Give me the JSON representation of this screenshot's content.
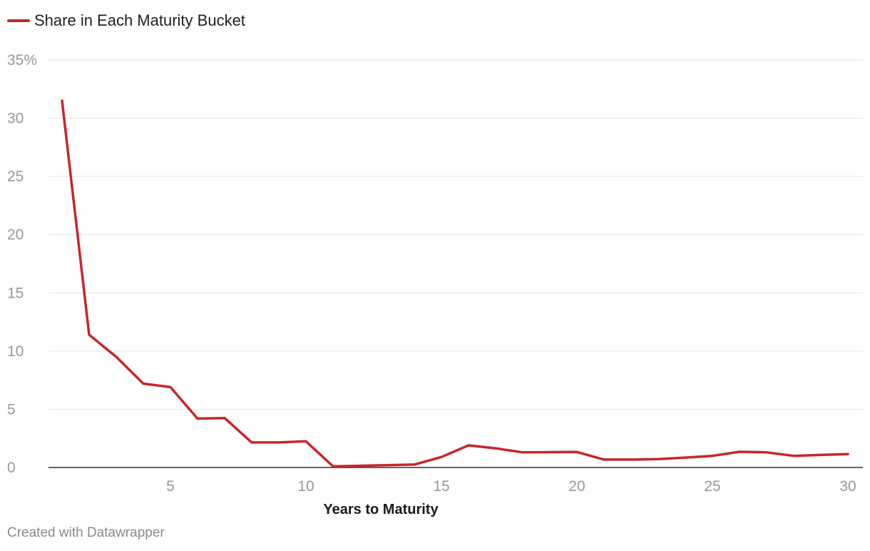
{
  "legend": {
    "label": "Share in Each Maturity Bucket"
  },
  "footer": {
    "text": "Created with Datawrapper"
  },
  "colors": {
    "line": "#c7262b",
    "grid": "#e5e5e5",
    "tick": "#999999",
    "axis": "#333333",
    "xlabel": "#1a1a1a"
  },
  "chart_data": {
    "type": "line",
    "title": "",
    "xlabel": "Years to Maturity",
    "ylabel": "",
    "xlim": [
      1,
      30
    ],
    "ylim": [
      0,
      35
    ],
    "yticks": [
      0,
      5,
      10,
      15,
      20,
      25,
      30,
      35
    ],
    "ytick_labels": [
      "0",
      "5",
      "10",
      "15",
      "20",
      "25",
      "30",
      "35%"
    ],
    "xticks": [
      5,
      10,
      15,
      20,
      25,
      30
    ],
    "xtick_labels": [
      "5",
      "10",
      "15",
      "20",
      "25",
      "30"
    ],
    "grid": true,
    "legend_position": "top-left",
    "series": [
      {
        "name": "Share in Each Maturity Bucket",
        "x": [
          1,
          2,
          3,
          4,
          5,
          6,
          7,
          8,
          9,
          10,
          11,
          12,
          13,
          14,
          15,
          16,
          17,
          18,
          19,
          20,
          21,
          22,
          23,
          24,
          25,
          26,
          27,
          28,
          29,
          30
        ],
        "values": [
          31.5,
          11.4,
          9.5,
          7.2,
          6.9,
          4.2,
          4.25,
          2.15,
          2.15,
          2.25,
          0.1,
          0.15,
          0.2,
          0.25,
          0.9,
          1.9,
          1.65,
          1.3,
          1.32,
          1.33,
          0.68,
          0.68,
          0.72,
          0.85,
          1.0,
          1.35,
          1.3,
          1.0,
          1.08,
          1.15
        ]
      }
    ]
  }
}
